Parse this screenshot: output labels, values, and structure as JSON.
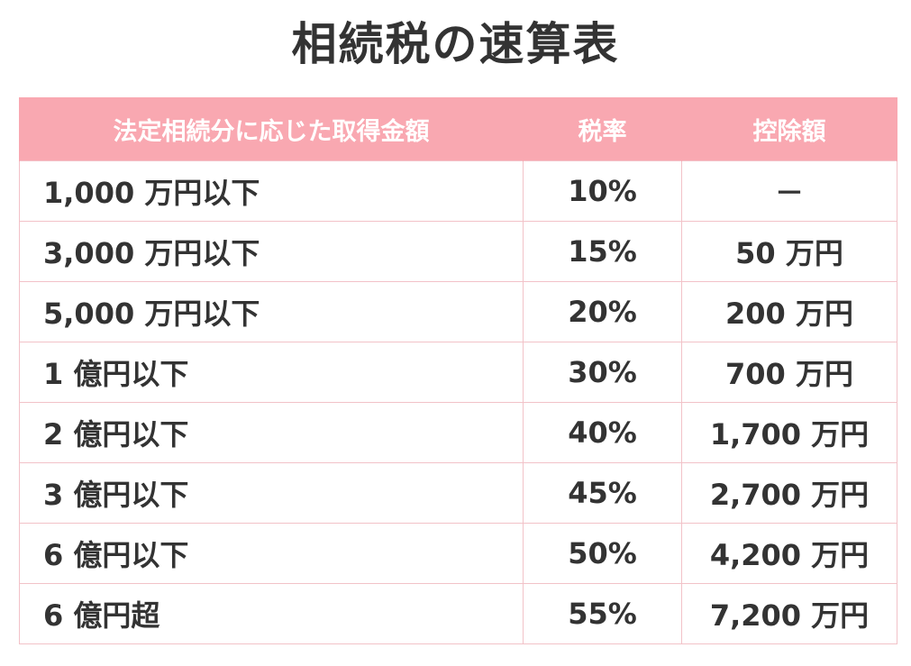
{
  "title": "相続税の速算表",
  "table": {
    "headers": {
      "amount": "法定相続分に応じた取得金額",
      "rate": "税率",
      "deduction": "控除額"
    },
    "rows": [
      {
        "amount": "1,000 万円以下",
        "rate": "10%",
        "deduction": "－"
      },
      {
        "amount": "3,000 万円以下",
        "rate": "15%",
        "deduction": "50 万円"
      },
      {
        "amount": "5,000 万円以下",
        "rate": "20%",
        "deduction": "200 万円"
      },
      {
        "amount": "1 億円以下",
        "rate": "30%",
        "deduction": "700 万円"
      },
      {
        "amount": "2 億円以下",
        "rate": "40%",
        "deduction": "1,700 万円"
      },
      {
        "amount": "3 億円以下",
        "rate": "45%",
        "deduction": "2,700 万円"
      },
      {
        "amount": "6 億円以下",
        "rate": "50%",
        "deduction": "4,200 万円"
      },
      {
        "amount": "6 億円超",
        "rate": "55%",
        "deduction": "7,200 万円"
      }
    ]
  },
  "colors": {
    "header_background": "#f9a8b1",
    "header_text": "#ffffff",
    "grid_line": "#f2c2c8",
    "body_text": "#333333"
  }
}
